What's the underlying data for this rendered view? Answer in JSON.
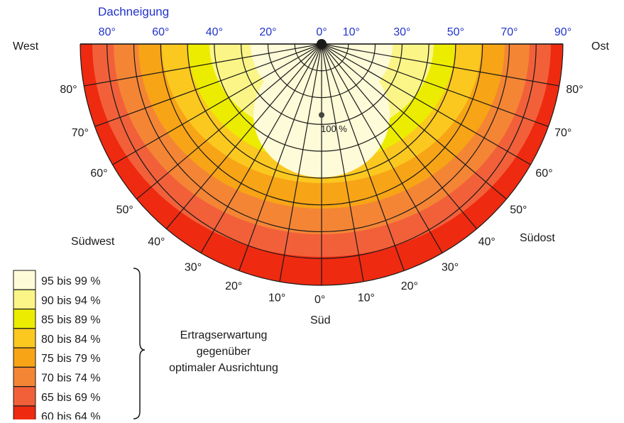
{
  "title": "Dachneigung",
  "tilt_labels_top": [
    "80°",
    "60°",
    "40°",
    "20°",
    "0°",
    "10°",
    "30°",
    "50°",
    "70°",
    "90°"
  ],
  "west_label": "West",
  "east_label": "Ost",
  "south_label": "Süd",
  "southwest_label": "Südwest",
  "southeast_label": "Südost",
  "azimuth_labels_left": [
    "80°",
    "70°",
    "60°",
    "50°",
    "40°",
    "30°",
    "20°",
    "10°"
  ],
  "azimuth_labels_right": [
    "80°",
    "70°",
    "60°",
    "50°",
    "40°",
    "30°",
    "20°",
    "10°"
  ],
  "azimuth_zero": "0°",
  "center_label": "100 %",
  "legend": [
    {
      "label": "95 bis 99 %",
      "color": "#fdfbd8"
    },
    {
      "label": "90 bis 94 %",
      "color": "#fbf587"
    },
    {
      "label": "85 bis 89 %",
      "color": "#ecec00"
    },
    {
      "label": "80 bis 84 %",
      "color": "#fbc820"
    },
    {
      "label": "75 bis 79 %",
      "color": "#f7a416"
    },
    {
      "label": "70 bis 74 %",
      "color": "#f48535"
    },
    {
      "label": "65 bis 69 %",
      "color": "#f2603a"
    },
    {
      "label": "60 bis 64 %",
      "color": "#ee2a10"
    }
  ],
  "legend_caption": [
    "Ertragserwartung",
    "gegenüber",
    "optimaler Ausrichtung"
  ],
  "colors": {
    "title_blue": "#2233cc",
    "grid": "#1a1a1a"
  }
}
